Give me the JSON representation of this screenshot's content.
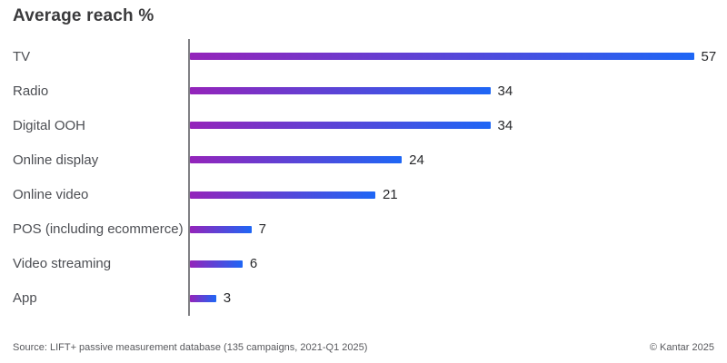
{
  "title": "Average reach %",
  "chart_data": {
    "type": "bar",
    "orientation": "horizontal",
    "title": "Average reach %",
    "categories": [
      "TV",
      "Radio",
      "Digital OOH",
      "Online display",
      "Online video",
      "POS (including ecommerce)",
      "Video streaming",
      "App"
    ],
    "values": [
      57,
      34,
      34,
      24,
      21,
      7,
      6,
      3
    ],
    "xlabel": "",
    "ylabel": "",
    "xlim": [
      0,
      57
    ],
    "grid": false,
    "legend": false,
    "value_labels_shown": true,
    "bar_gradient_start": "#9424BA",
    "bar_gradient_end": "#1E66F5",
    "axis_color": "#808084"
  },
  "footer": {
    "source": "Source: LIFT+ passive measurement database (135 campaigns, 2021-Q1 2025)",
    "copyright": "© Kantar 2025"
  }
}
